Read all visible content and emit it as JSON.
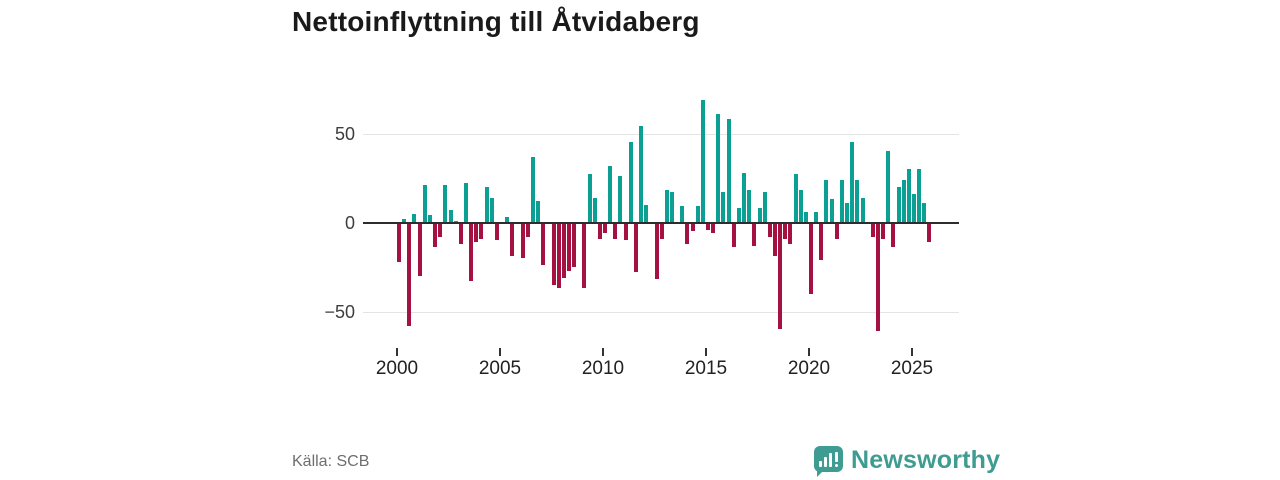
{
  "title": "Nettoinflyttning till Åtvidaberg",
  "source": "Källa: SCB",
  "logo": {
    "text": "Newsworthy"
  },
  "colors": {
    "positive": "#0CA094",
    "negative": "#A51140",
    "zero_line": "#2d2d2d",
    "gridline": "#e4e4e4",
    "title_text": "#1a1a1a",
    "axis_text": "#3d3d3d",
    "source_text": "#6e6e6e",
    "logo_teal": "#3F9C92"
  },
  "chart_data": {
    "type": "bar",
    "title": "Nettoinflyttning till Åtvidaberg",
    "period": "quarterly",
    "start_year": 2000,
    "xlabel": "",
    "ylabel": "",
    "ylim": [
      -65,
      75
    ],
    "grid": "horizontal",
    "yticks": [
      {
        "value": 50,
        "label": "50"
      },
      {
        "value": 0,
        "label": "0"
      },
      {
        "value": -50,
        "label": "−50"
      }
    ],
    "xticks": [
      {
        "year": 2000,
        "label": "2000"
      },
      {
        "year": 2005,
        "label": "2005"
      },
      {
        "year": 2010,
        "label": "2010"
      },
      {
        "year": 2015,
        "label": "2015"
      },
      {
        "year": 2020,
        "label": "2020"
      },
      {
        "year": 2025,
        "label": "2025"
      }
    ],
    "values": [
      -22,
      2,
      -58,
      5,
      -30,
      21,
      4,
      -14,
      -8,
      21,
      7,
      1,
      -12,
      22,
      -33,
      -11,
      -9,
      20,
      14,
      -10,
      0,
      3,
      -19,
      0,
      -20,
      -8,
      37,
      12,
      -24,
      0,
      -35,
      -37,
      -31,
      -27,
      -25,
      0,
      -37,
      27,
      14,
      -9,
      -6,
      32,
      -9,
      26,
      -10,
      45,
      -28,
      54,
      10,
      0,
      -32,
      -9,
      18,
      17,
      0,
      9,
      -12,
      -5,
      9,
      69,
      -4,
      -6,
      61,
      17,
      58,
      -14,
      8,
      28,
      18,
      -13,
      8,
      17,
      -8,
      -19,
      -60,
      -9,
      -12,
      27,
      18,
      6,
      -40,
      6,
      -21,
      24,
      13,
      -9,
      24,
      11,
      45,
      24,
      14,
      0,
      -8,
      -61,
      -9,
      40,
      -14,
      20,
      24,
      30,
      16,
      30,
      11,
      -11
    ]
  }
}
